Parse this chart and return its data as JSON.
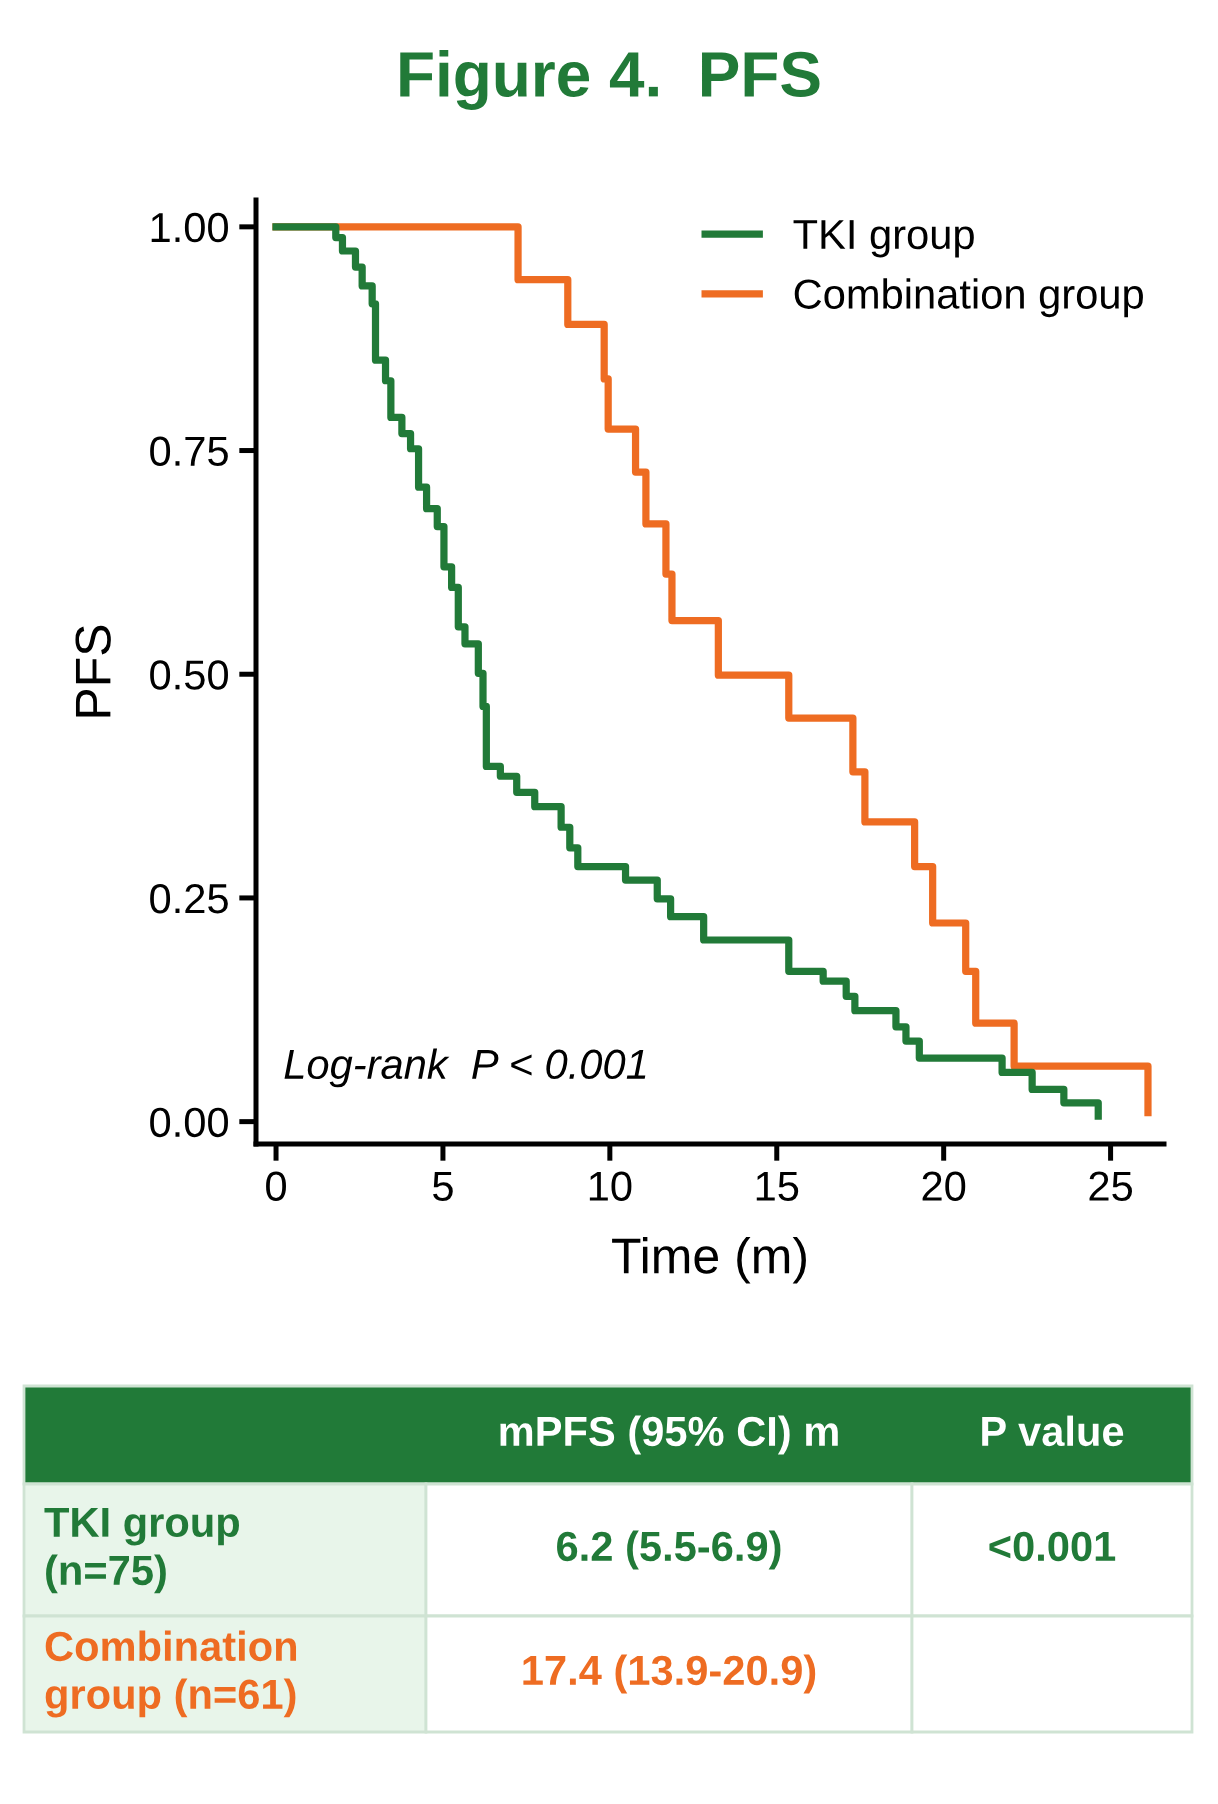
{
  "chart_data": {
    "type": "step",
    "title": "Figure 4.  PFS",
    "xlabel": "Time (m)",
    "ylabel": "PFS",
    "xlim": [
      -0.6,
      26.6
    ],
    "ylim": [
      -0.025,
      1.03
    ],
    "xticks": [
      0,
      5,
      10,
      15,
      20,
      25
    ],
    "yticks": [
      {
        "value": 0,
        "label": "0.00"
      },
      {
        "value": 0.25,
        "label": "0.25"
      },
      {
        "value": 0.5,
        "label": "0.50"
      },
      {
        "value": 0.75,
        "label": "0.75"
      },
      {
        "value": 1,
        "label": "1.00"
      }
    ],
    "legend": "top right",
    "grid": false,
    "marker": "none",
    "line_style": "solid",
    "series": [
      {
        "name": "TKI group",
        "color": "#217a38",
        "x": [
          0,
          1.79,
          1.99,
          2.38,
          2.58,
          2.88,
          2.98,
          3.28,
          3.44,
          3.77,
          4.03,
          4.27,
          4.51,
          4.83,
          5.03,
          5.26,
          5.46,
          5.66,
          6.06,
          6.2,
          6.3,
          6.72,
          7.21,
          7.75,
          8.54,
          8.8,
          9.04,
          10.47,
          11.42,
          11.82,
          12.81,
          13.11,
          15.36,
          16.39,
          17.08,
          17.34,
          18.57,
          18.87,
          19.27,
          21.75,
          22.65,
          23.6,
          24.63
        ],
        "values": [
          1.0,
          0.988,
          0.973,
          0.955,
          0.934,
          0.914,
          0.851,
          0.828,
          0.787,
          0.769,
          0.752,
          0.709,
          0.685,
          0.665,
          0.62,
          0.597,
          0.553,
          0.534,
          0.501,
          0.464,
          0.397,
          0.386,
          0.368,
          0.352,
          0.329,
          0.306,
          0.285,
          0.27,
          0.249,
          0.229,
          0.203,
          0.203,
          0.168,
          0.157,
          0.14,
          0.124,
          0.106,
          0.09,
          0.071,
          0.055,
          0.036,
          0.021,
          0.006
        ]
      },
      {
        "name": "Combination group",
        "color": "#ee6c22",
        "x": [
          0,
          7.25,
          8.74,
          9.83,
          9.95,
          10.77,
          11.08,
          11.68,
          11.86,
          13.25,
          15.36,
          17.28,
          17.64,
          19.13,
          19.67,
          20.66,
          20.96,
          22.11,
          26.12
        ],
        "values": [
          1.0,
          0.941,
          0.891,
          0.83,
          0.774,
          0.726,
          0.668,
          0.612,
          0.56,
          0.499,
          0.451,
          0.391,
          0.335,
          0.285,
          0.222,
          0.168,
          0.11,
          0.062,
          0.01
        ]
      }
    ],
    "annotations": [
      "Log-rank  P < 0.001",
      "mPFS (95% CI) m",
      "P value",
      "TKI group\n(n=75)",
      "6.2 (5.5-6.9)",
      "<0.001",
      "Combination\ngroup (n=61)",
      "17.4 (13.9-20.9)"
    ]
  }
}
